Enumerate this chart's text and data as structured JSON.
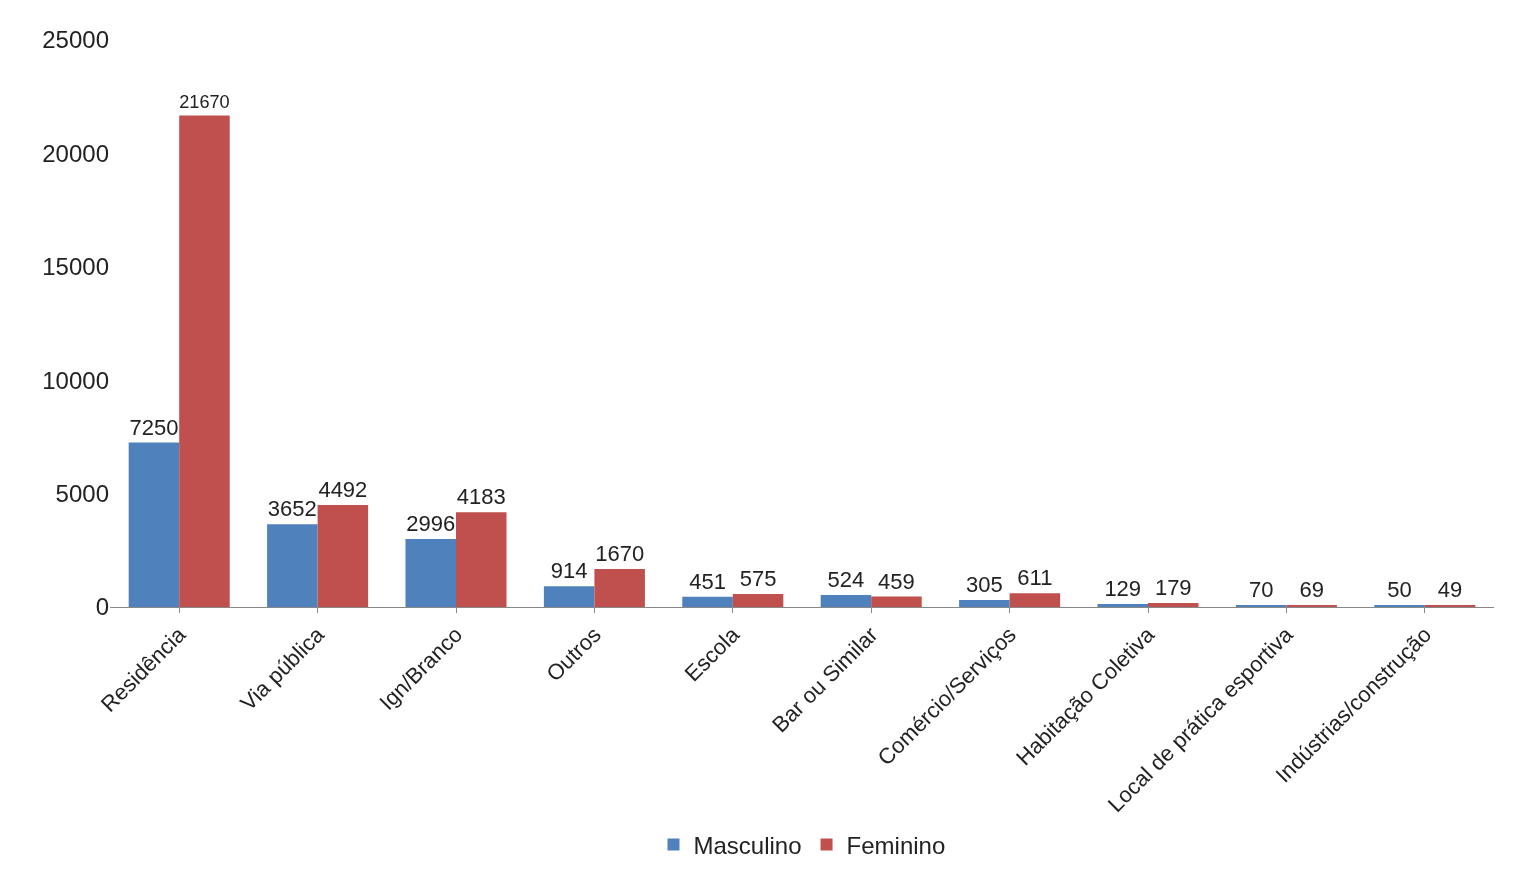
{
  "chart_data": {
    "type": "bar",
    "categories": [
      "Residência",
      "Via pública",
      "Ign/Branco",
      "Outros",
      "Escola",
      "Bar ou Similar",
      "Comércio/Serviços",
      "Habitação Coletiva",
      "Local de prática esportiva",
      "Indústrias/construção"
    ],
    "series": [
      {
        "name": "Masculino",
        "color": "#4f81bd",
        "values": [
          7250,
          3652,
          2996,
          914,
          451,
          524,
          305,
          129,
          70,
          50
        ]
      },
      {
        "name": "Feminino",
        "color": "#c0504d",
        "values": [
          21670,
          4492,
          4183,
          1670,
          575,
          459,
          611,
          179,
          69,
          49
        ]
      }
    ],
    "ylim": [
      0,
      25000
    ],
    "yticks": [
      0,
      5000,
      10000,
      15000,
      20000,
      25000
    ],
    "data_labels": true,
    "grid": false,
    "legend": "bottom"
  }
}
